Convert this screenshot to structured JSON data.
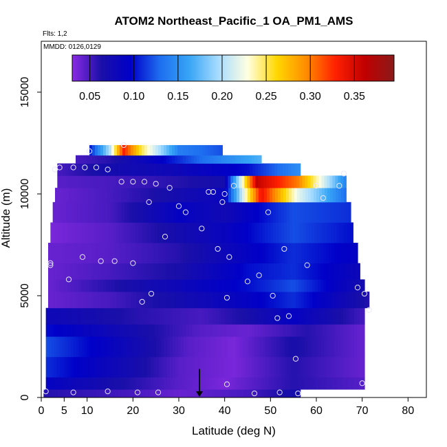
{
  "chart_data": {
    "type": "heatmap",
    "title": "ATOM2 Northeast_Pacific_1 OA_PM1_AMS",
    "flights_label": "Flts: 1,2",
    "dates_label": "MMDD: 0126,0129",
    "xlabel": "Latitude (deg N)",
    "ylabel": "Altitude (m)",
    "xlim": [
      0,
      84
    ],
    "ylim": [
      0,
      17500
    ],
    "x_ticks": [
      0,
      5,
      10,
      20,
      30,
      40,
      50,
      60,
      70,
      80
    ],
    "x_tick_labels": [
      "0",
      "5",
      "10",
      "20",
      "30",
      "40",
      "50",
      "60",
      "70",
      "80"
    ],
    "y_ticks": [
      0,
      5000,
      10000,
      15000
    ],
    "y_tick_labels": [
      "0",
      "5000",
      "10000",
      "15000"
    ],
    "colorbar": {
      "min": 0.03,
      "max": 0.395,
      "ticks": [
        0.05,
        0.1,
        0.15,
        0.2,
        0.25,
        0.3,
        0.35
      ],
      "tick_labels": [
        "0.05",
        "0.10",
        "0.15",
        "0.20",
        "0.25",
        "0.30",
        "0.35"
      ]
    },
    "colors": [
      "#8a2be2",
      "#1a0fa8",
      "#0000c8",
      "#1e6ef0",
      "#37a5f5",
      "#a8dcff",
      "#ffffe0",
      "#ffd700",
      "#ff8c00",
      "#ff2000",
      "#c00000",
      "#8b1a1a"
    ],
    "marker_latitude": 34.5,
    "bands": [
      {
        "y0": 0,
        "y1": 400,
        "x0": 0.5,
        "x1": 56.5,
        "v": [
          [
            0.5,
            0.06
          ],
          [
            20,
            0.05
          ],
          [
            30,
            0.04
          ],
          [
            45,
            0.05
          ],
          [
            56.5,
            0.07
          ]
        ]
      },
      {
        "y0": 400,
        "y1": 1000,
        "x0": 1,
        "x1": 70.5,
        "v": [
          [
            1,
            0.09
          ],
          [
            20,
            0.06
          ],
          [
            30,
            0.045
          ],
          [
            40,
            0.035
          ],
          [
            55,
            0.06
          ],
          [
            70.5,
            0.045
          ]
        ]
      },
      {
        "y0": 1000,
        "y1": 2000,
        "x0": 1,
        "x1": 70.5,
        "v": [
          [
            1,
            0.11
          ],
          [
            20,
            0.07
          ],
          [
            30,
            0.045
          ],
          [
            42,
            0.035
          ],
          [
            55,
            0.06
          ],
          [
            70.5,
            0.04
          ]
        ]
      },
      {
        "y0": 2000,
        "y1": 3000,
        "x0": 1,
        "x1": 70.5,
        "v": [
          [
            1,
            0.12
          ],
          [
            20,
            0.075
          ],
          [
            32,
            0.045
          ],
          [
            42,
            0.035
          ],
          [
            55,
            0.065
          ],
          [
            70.5,
            0.04
          ]
        ]
      },
      {
        "y0": 3000,
        "y1": 3600,
        "x0": 1,
        "x1": 70.5,
        "v": [
          [
            1,
            0.1
          ],
          [
            20,
            0.07
          ],
          [
            35,
            0.045
          ],
          [
            45,
            0.04
          ],
          [
            58,
            0.06
          ],
          [
            70.5,
            0.04
          ]
        ]
      },
      {
        "y0": 3600,
        "y1": 4400,
        "x0": 1,
        "x1": 70.5,
        "v": [
          [
            1,
            0.08
          ],
          [
            20,
            0.06
          ],
          [
            35,
            0.05
          ],
          [
            45,
            0.065
          ],
          [
            55,
            0.09
          ],
          [
            70.5,
            0.05
          ]
        ]
      },
      {
        "y0": 4400,
        "y1": 5200,
        "x0": 1.5,
        "x1": 71.5,
        "v": [
          [
            1.5,
            0.04
          ],
          [
            15,
            0.05
          ],
          [
            30,
            0.07
          ],
          [
            45,
            0.09
          ],
          [
            55,
            0.11
          ],
          [
            71.5,
            0.06
          ]
        ]
      },
      {
        "y0": 5200,
        "y1": 5800,
        "x0": 1.5,
        "x1": 70.5,
        "v": [
          [
            1.5,
            0.04
          ],
          [
            15,
            0.06
          ],
          [
            30,
            0.08
          ],
          [
            45,
            0.1
          ],
          [
            55,
            0.12
          ],
          [
            70.5,
            0.07
          ]
        ]
      },
      {
        "y0": 5800,
        "y1": 6600,
        "x0": 1.5,
        "x1": 69.5,
        "v": [
          [
            1.5,
            0.04
          ],
          [
            15,
            0.05
          ],
          [
            30,
            0.065
          ],
          [
            45,
            0.1
          ],
          [
            55,
            0.11
          ],
          [
            69.5,
            0.08
          ]
        ]
      },
      {
        "y0": 6600,
        "y1": 7600,
        "x0": 1.5,
        "x1": 69,
        "v": [
          [
            1.5,
            0.04
          ],
          [
            15,
            0.045
          ],
          [
            30,
            0.06
          ],
          [
            40,
            0.08
          ],
          [
            55,
            0.11
          ],
          [
            69,
            0.09
          ]
        ]
      },
      {
        "y0": 7600,
        "y1": 8600,
        "x0": 2,
        "x1": 68,
        "v": [
          [
            2,
            0.035
          ],
          [
            15,
            0.045
          ],
          [
            30,
            0.07
          ],
          [
            40,
            0.085
          ],
          [
            55,
            0.12
          ],
          [
            68,
            0.1
          ]
        ]
      },
      {
        "y0": 8600,
        "y1": 9600,
        "x0": 2.5,
        "x1": 67.5,
        "v": [
          [
            2.5,
            0.04
          ],
          [
            15,
            0.05
          ],
          [
            30,
            0.09
          ],
          [
            40,
            0.075
          ],
          [
            55,
            0.12
          ],
          [
            67.5,
            0.11
          ]
        ]
      },
      {
        "y0": 9600,
        "y1": 10300,
        "x0": 3,
        "x1": 66.5,
        "v": [
          [
            3,
            0.04
          ],
          [
            15,
            0.05
          ],
          [
            30,
            0.07
          ],
          [
            40,
            0.085
          ],
          [
            48,
            0.34
          ],
          [
            56,
            0.22
          ],
          [
            66.5,
            0.13
          ]
        ]
      },
      {
        "y0": 10300,
        "y1": 10900,
        "x0": 3.5,
        "x1": 66.5,
        "v": [
          [
            3.5,
            0.045
          ],
          [
            15,
            0.05
          ],
          [
            30,
            0.06
          ],
          [
            40,
            0.07
          ],
          [
            47,
            0.36
          ],
          [
            56,
            0.3
          ],
          [
            66.5,
            0.14
          ]
        ]
      },
      {
        "y0": 10900,
        "y1": 11500,
        "x0": 3.5,
        "x1": 56.5,
        "v": [
          [
            3.5,
            0.05
          ],
          [
            15,
            0.07
          ],
          [
            30,
            0.08
          ],
          [
            45,
            0.1
          ],
          [
            56.5,
            0.15
          ]
        ]
      },
      {
        "y0": 11500,
        "y1": 11900,
        "x0": 7.5,
        "x1": 48,
        "v": [
          [
            7.5,
            0.05
          ],
          [
            15,
            0.06
          ],
          [
            25,
            0.09
          ],
          [
            35,
            0.13
          ],
          [
            48,
            0.17
          ]
        ]
      },
      {
        "y0": 11900,
        "y1": 12400,
        "x0": 10.5,
        "x1": 39.5,
        "v": [
          [
            10.5,
            0.1
          ],
          [
            15,
            0.2
          ],
          [
            18,
            0.33
          ],
          [
            22,
            0.25
          ],
          [
            30,
            0.14
          ],
          [
            39.5,
            0.12
          ]
        ]
      }
    ],
    "points": [
      [
        1,
        300
      ],
      [
        7,
        250
      ],
      [
        14.5,
        300
      ],
      [
        21,
        250
      ],
      [
        25.5,
        250
      ],
      [
        40.5,
        650
      ],
      [
        46.5,
        200
      ],
      [
        52,
        250
      ],
      [
        56,
        200
      ],
      [
        70,
        700
      ],
      [
        55.5,
        1900
      ],
      [
        51.5,
        3900
      ],
      [
        54,
        4000
      ],
      [
        71.5,
        4300
      ],
      [
        22,
        4700
      ],
      [
        24,
        5100
      ],
      [
        40.5,
        4900
      ],
      [
        50.5,
        5000
      ],
      [
        69,
        5400
      ],
      [
        70.5,
        5100
      ],
      [
        6,
        5800
      ],
      [
        45,
        5700
      ],
      [
        47.5,
        6000
      ],
      [
        2,
        6500
      ],
      [
        2,
        6600
      ],
      [
        13,
        6700
      ],
      [
        9,
        6900
      ],
      [
        16,
        6700
      ],
      [
        20,
        6600
      ],
      [
        41,
        6900
      ],
      [
        38.5,
        7300
      ],
      [
        58,
        6500
      ],
      [
        53,
        7300
      ],
      [
        27,
        7900
      ],
      [
        35,
        8300
      ],
      [
        31.5,
        9100
      ],
      [
        30,
        9400
      ],
      [
        49.5,
        9100
      ],
      [
        23.5,
        9600
      ],
      [
        39.5,
        9600
      ],
      [
        61.5,
        9800
      ],
      [
        40,
        10000
      ],
      [
        36.5,
        10100
      ],
      [
        37.5,
        10100
      ],
      [
        28,
        10300
      ],
      [
        42,
        10400
      ],
      [
        60,
        10400
      ],
      [
        65,
        10400
      ],
      [
        17.5,
        10600
      ],
      [
        20,
        10600
      ],
      [
        22.5,
        10600
      ],
      [
        25,
        10500
      ],
      [
        66,
        11000
      ],
      [
        3,
        11200
      ],
      [
        4,
        11300
      ],
      [
        7,
        11300
      ],
      [
        9.5,
        11300
      ],
      [
        12,
        11300
      ],
      [
        14.5,
        11200
      ],
      [
        10.5,
        12100
      ],
      [
        18,
        12400
      ]
    ]
  }
}
